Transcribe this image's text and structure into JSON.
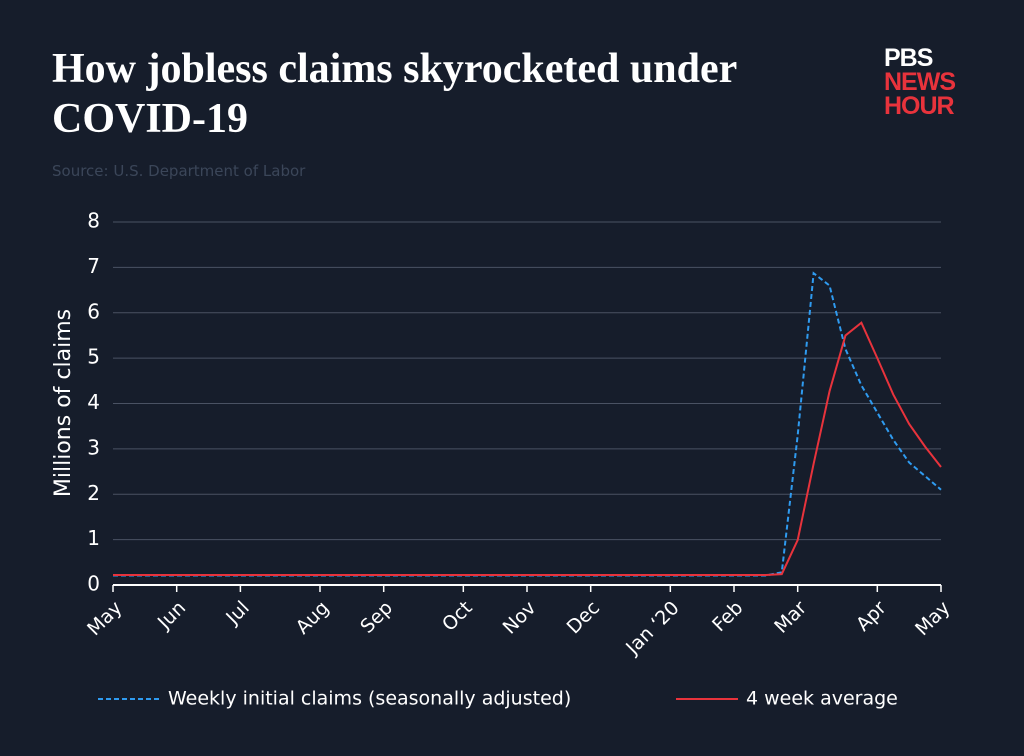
{
  "chart_data": {
    "type": "line",
    "title": "How jobless claims skyrocketed under COVID-19",
    "subtitle": "Source: U.S. Department of Labor",
    "logo": [
      "PBS",
      "NEWS",
      "HOUR"
    ],
    "y_label": "Millions of claims",
    "categories": [
      "May",
      null,
      null,
      null,
      "Jun",
      null,
      null,
      null,
      "Jul",
      null,
      null,
      null,
      null,
      "Aug",
      null,
      null,
      null,
      "Sep",
      null,
      null,
      null,
      null,
      "Oct",
      null,
      null,
      null,
      "Nov",
      null,
      null,
      null,
      "Dec",
      null,
      null,
      null,
      null,
      "Jan ‘20",
      null,
      null,
      null,
      "Feb",
      null,
      null,
      null,
      "Mar",
      null,
      null,
      null,
      null,
      "Apr",
      null,
      null,
      null,
      "May"
    ],
    "series": [
      {
        "name": "Weekly initial claims (seasonally adjusted)",
        "color": "#2f9bf0",
        "dashed": true,
        "values": [
          0.21,
          0.21,
          0.21,
          0.21,
          0.21,
          0.21,
          0.21,
          0.21,
          0.21,
          0.21,
          0.21,
          0.21,
          0.21,
          0.21,
          0.21,
          0.21,
          0.21,
          0.21,
          0.21,
          0.21,
          0.21,
          0.21,
          0.21,
          0.21,
          0.21,
          0.21,
          0.21,
          0.21,
          0.21,
          0.21,
          0.21,
          0.21,
          0.21,
          0.21,
          0.21,
          0.21,
          0.21,
          0.21,
          0.21,
          0.21,
          0.21,
          0.21,
          0.28,
          3.3,
          6.87,
          6.6,
          5.2,
          4.4,
          3.8,
          3.2,
          2.7,
          2.4,
          2.1
        ]
      },
      {
        "name": "4 week average",
        "color": "#e8333c",
        "dashed": false,
        "values": [
          0.22,
          0.22,
          0.22,
          0.22,
          0.22,
          0.22,
          0.22,
          0.22,
          0.22,
          0.22,
          0.22,
          0.22,
          0.22,
          0.22,
          0.22,
          0.22,
          0.22,
          0.22,
          0.22,
          0.22,
          0.22,
          0.22,
          0.22,
          0.22,
          0.22,
          0.22,
          0.22,
          0.22,
          0.22,
          0.22,
          0.22,
          0.22,
          0.22,
          0.22,
          0.22,
          0.22,
          0.22,
          0.22,
          0.22,
          0.22,
          0.22,
          0.22,
          0.24,
          0.99,
          2.67,
          4.27,
          5.5,
          5.78,
          5.0,
          4.2,
          3.55,
          3.05,
          2.6
        ]
      }
    ],
    "ylim": [
      0,
      8
    ],
    "yticks": [
      0,
      1,
      2,
      3,
      4,
      5,
      6,
      7,
      8
    ],
    "grid": true
  }
}
